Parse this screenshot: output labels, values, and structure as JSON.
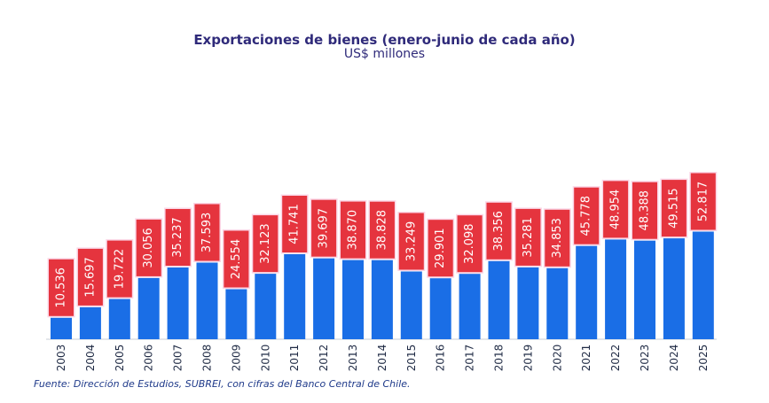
{
  "chart_data": {
    "type": "bar",
    "title": "Exportaciones de bienes (enero-junio de cada año)",
    "subtitle": "US$ millones",
    "xlabel": "",
    "ylabel": "",
    "categories": [
      "2003",
      "2004",
      "2005",
      "2006",
      "2007",
      "2008",
      "2009",
      "2010",
      "2011",
      "2012",
      "2013",
      "2014",
      "2015",
      "2016",
      "2017",
      "2018",
      "2019",
      "2020",
      "2021",
      "2022",
      "2023",
      "2024",
      "2025"
    ],
    "values": [
      10536,
      15697,
      19722,
      30056,
      35237,
      37593,
      24554,
      32123,
      41741,
      39697,
      38870,
      38828,
      33249,
      29901,
      32098,
      38356,
      35281,
      34853,
      45778,
      48954,
      48388,
      49515,
      52817
    ],
    "data_labels": [
      "10.536",
      "15.697",
      "19.722",
      "30.056",
      "35.237",
      "37.593",
      "24.554",
      "32.123",
      "41.741",
      "39.697",
      "38.870",
      "38.828",
      "33.249",
      "29.901",
      "32.098",
      "38.356",
      "35.281",
      "34.853",
      "45.778",
      "48.954",
      "48.388",
      "49.515",
      "52.817"
    ],
    "ylim": [
      0,
      58000
    ],
    "grid": false,
    "legend": "none",
    "colors": {
      "bar": "#1a6ee6",
      "label_box": "#e5343e",
      "label_text": "#ffffff",
      "axis": "#c7cdd6",
      "tick_text": "#1f2a44"
    }
  },
  "source_note": "Fuente: Dirección de Estudios, SUBREI, con cifras del Banco Central de Chile."
}
